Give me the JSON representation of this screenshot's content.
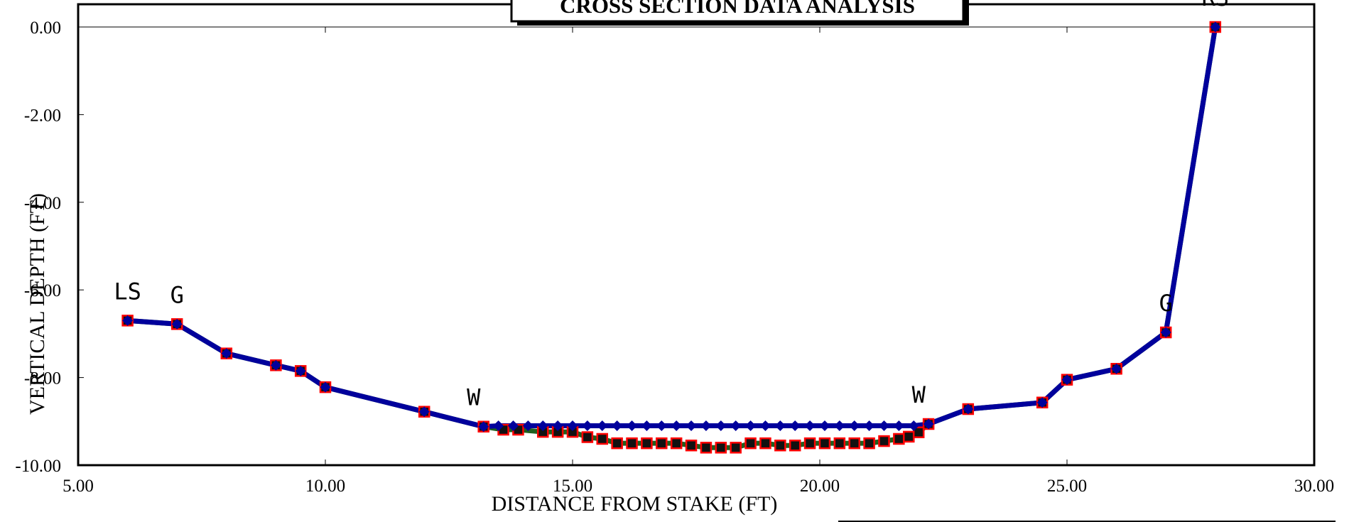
{
  "chart_data": {
    "type": "line",
    "title": "CROSS SECTION DATA ANALYSIS",
    "xlabel": "DISTANCE FROM STAKE (FT)",
    "ylabel": "VERTICAL DEPTH (FT)",
    "xlim": [
      5,
      30
    ],
    "ylim": [
      -10,
      0
    ],
    "x_ticks": [
      "5.00",
      "10.00",
      "15.00",
      "20.00",
      "25.00",
      "30.00"
    ],
    "y_ticks": [
      "0.00",
      "-2.00",
      "-4.00",
      "-6.00",
      "-8.00",
      "-10.00"
    ],
    "grid": false,
    "legend": "none",
    "series": [
      {
        "marker": "square",
        "line_color": "#1f5f1f",
        "marker_fill": "#111111",
        "marker_edge": "#ff0000",
        "points": [
          [
            6.0,
            -6.7
          ],
          [
            7.0,
            -6.78
          ],
          [
            8.0,
            -7.45
          ],
          [
            9.0,
            -7.72
          ],
          [
            9.5,
            -7.85
          ],
          [
            10.0,
            -8.22
          ],
          [
            12.0,
            -8.78
          ],
          [
            13.2,
            -9.12
          ],
          [
            13.6,
            -9.19
          ],
          [
            13.9,
            -9.19
          ],
          [
            14.4,
            -9.24
          ],
          [
            14.7,
            -9.24
          ],
          [
            15.0,
            -9.24
          ],
          [
            15.3,
            -9.36
          ],
          [
            15.6,
            -9.4
          ],
          [
            15.9,
            -9.5
          ],
          [
            16.2,
            -9.5
          ],
          [
            16.5,
            -9.5
          ],
          [
            16.8,
            -9.5
          ],
          [
            17.1,
            -9.5
          ],
          [
            17.4,
            -9.55
          ],
          [
            17.7,
            -9.6
          ],
          [
            18.0,
            -9.6
          ],
          [
            18.3,
            -9.6
          ],
          [
            18.6,
            -9.5
          ],
          [
            18.9,
            -9.5
          ],
          [
            19.2,
            -9.55
          ],
          [
            19.5,
            -9.55
          ],
          [
            19.8,
            -9.5
          ],
          [
            20.1,
            -9.5
          ],
          [
            20.4,
            -9.5
          ],
          [
            20.7,
            -9.5
          ],
          [
            21.0,
            -9.5
          ],
          [
            21.3,
            -9.45
          ],
          [
            21.6,
            -9.4
          ],
          [
            21.8,
            -9.35
          ],
          [
            22.0,
            -9.25
          ],
          [
            22.2,
            -9.06
          ],
          [
            23.0,
            -8.72
          ],
          [
            24.5,
            -8.57
          ],
          [
            25.0,
            -8.05
          ],
          [
            26.0,
            -7.8
          ],
          [
            27.0,
            -6.97
          ],
          [
            28.0,
            0.0
          ]
        ]
      },
      {
        "marker": "diamond",
        "line_color": "#00009c",
        "marker_fill": "#00009c",
        "points": [
          [
            6.0,
            -6.7
          ],
          [
            7.0,
            -6.78
          ],
          [
            8.0,
            -7.45
          ],
          [
            9.0,
            -7.72
          ],
          [
            9.5,
            -7.85
          ],
          [
            10.0,
            -8.22
          ],
          [
            12.0,
            -8.78
          ],
          [
            13.2,
            -9.12
          ],
          [
            13.5,
            -9.1
          ],
          [
            13.8,
            -9.1
          ],
          [
            14.1,
            -9.1
          ],
          [
            14.4,
            -9.1
          ],
          [
            14.7,
            -9.1
          ],
          [
            15.0,
            -9.1
          ],
          [
            15.3,
            -9.1
          ],
          [
            15.6,
            -9.1
          ],
          [
            15.9,
            -9.1
          ],
          [
            16.2,
            -9.1
          ],
          [
            16.5,
            -9.1
          ],
          [
            16.8,
            -9.1
          ],
          [
            17.1,
            -9.1
          ],
          [
            17.4,
            -9.1
          ],
          [
            17.7,
            -9.1
          ],
          [
            18.0,
            -9.1
          ],
          [
            18.3,
            -9.1
          ],
          [
            18.6,
            -9.1
          ],
          [
            18.9,
            -9.1
          ],
          [
            19.2,
            -9.1
          ],
          [
            19.5,
            -9.1
          ],
          [
            19.8,
            -9.1
          ],
          [
            20.1,
            -9.1
          ],
          [
            20.4,
            -9.1
          ],
          [
            20.7,
            -9.1
          ],
          [
            21.0,
            -9.1
          ],
          [
            21.3,
            -9.1
          ],
          [
            21.6,
            -9.1
          ],
          [
            21.9,
            -9.1
          ],
          [
            22.2,
            -9.06
          ],
          [
            23.0,
            -8.72
          ],
          [
            24.5,
            -8.57
          ],
          [
            25.0,
            -8.05
          ],
          [
            26.0,
            -7.8
          ],
          [
            27.0,
            -6.97
          ],
          [
            28.0,
            0.0
          ]
        ]
      }
    ],
    "annotations": [
      {
        "text": "LS",
        "x": 6.0,
        "y": -6.7
      },
      {
        "text": "G",
        "x": 7.0,
        "y": -6.78
      },
      {
        "text": "W",
        "x": 13.0,
        "y": -9.12
      },
      {
        "text": "W",
        "x": 22.0,
        "y": -9.06
      },
      {
        "text": "G",
        "x": 27.0,
        "y": -6.97
      },
      {
        "text": "RS",
        "x": 28.0,
        "y": 0.0
      }
    ]
  }
}
